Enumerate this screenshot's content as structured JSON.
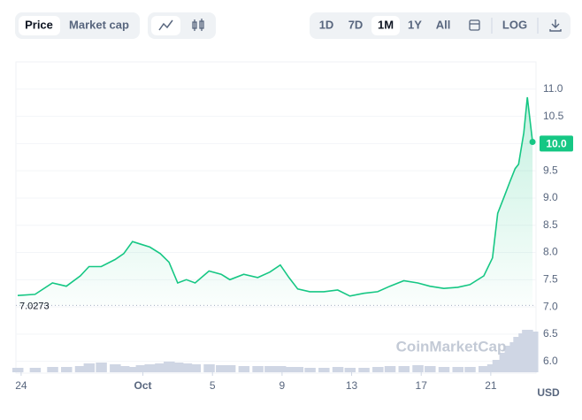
{
  "controls": {
    "metric_tabs": [
      "Price",
      "Market cap"
    ],
    "ranges": [
      "1D",
      "7D",
      "1M",
      "1Y",
      "All"
    ],
    "log": "LOG"
  },
  "chart_data": {
    "type": "line",
    "x": [
      -0.2,
      0.8,
      1.8,
      2.6,
      3.4,
      3.9,
      4.6,
      5.4,
      5.9,
      6.4,
      6.9,
      7.4,
      8.0,
      8.5,
      9.0,
      9.5,
      10.0,
      10.8,
      11.5,
      12.0,
      12.8,
      13.6,
      14.3,
      14.9,
      15.4,
      15.9,
      16.6,
      17.4,
      18.2,
      18.9,
      19.7,
      20.5,
      21.2,
      22.0,
      22.8,
      23.5,
      24.3,
      25.1,
      25.8,
      26.6,
      27.1,
      27.4,
      27.8,
      28.1,
      28.4,
      28.6,
      28.9,
      29.1,
      29.4
    ],
    "series": [
      {
        "name": "Price",
        "color": "#16c784",
        "values": [
          7.21,
          7.23,
          7.44,
          7.38,
          7.57,
          7.74,
          7.74,
          7.87,
          7.98,
          8.2,
          8.15,
          8.1,
          7.98,
          7.82,
          7.44,
          7.5,
          7.44,
          7.66,
          7.6,
          7.5,
          7.6,
          7.54,
          7.64,
          7.77,
          7.54,
          7.33,
          7.28,
          7.28,
          7.31,
          7.2,
          7.25,
          7.28,
          7.38,
          7.48,
          7.44,
          7.38,
          7.34,
          7.36,
          7.41,
          7.57,
          7.9,
          8.72,
          9.05,
          9.3,
          9.54,
          9.62,
          10.2,
          10.85,
          10.03
        ]
      }
    ],
    "volume": {
      "color": "#cfd6e4",
      "lim": [
        0,
        50
      ],
      "values": [
        5,
        5,
        6,
        6,
        7,
        10,
        11,
        9,
        7,
        6,
        8,
        9,
        10,
        12,
        11,
        10,
        9,
        9,
        8,
        8,
        7,
        7,
        7,
        7,
        6,
        6,
        5,
        5,
        6,
        5,
        5,
        6,
        7,
        7,
        8,
        7,
        6,
        6,
        6,
        7,
        9,
        14,
        22,
        30,
        34,
        40,
        44,
        48,
        46
      ]
    },
    "xlim": [
      -0.3,
      29.6
    ],
    "xticks": [
      {
        "value": 0,
        "label": "24"
      },
      {
        "value": 7,
        "label": "Oct"
      },
      {
        "value": 11,
        "label": "5"
      },
      {
        "value": 15,
        "label": "9"
      },
      {
        "value": 19,
        "label": "13"
      },
      {
        "value": 23,
        "label": "17"
      },
      {
        "value": 27,
        "label": "21"
      }
    ],
    "ylim": [
      5.8,
      11.5
    ],
    "yticks": [
      {
        "value": 6,
        "label": "6.0"
      },
      6.5,
      {
        "value": 7,
        "label": "7.0"
      },
      7.5,
      {
        "value": 8,
        "label": "8.0"
      },
      8.5,
      {
        "value": 9,
        "label": "9.0"
      },
      9.5,
      {
        "value": 10,
        "label": "10.0"
      },
      10.5,
      {
        "value": 11,
        "label": "11.0"
      }
    ],
    "open_price": 7.0273,
    "current_price": {
      "value": 10,
      "label": "10.0"
    },
    "currency": "USD",
    "watermark": "CoinMarketCap",
    "grid": true
  }
}
